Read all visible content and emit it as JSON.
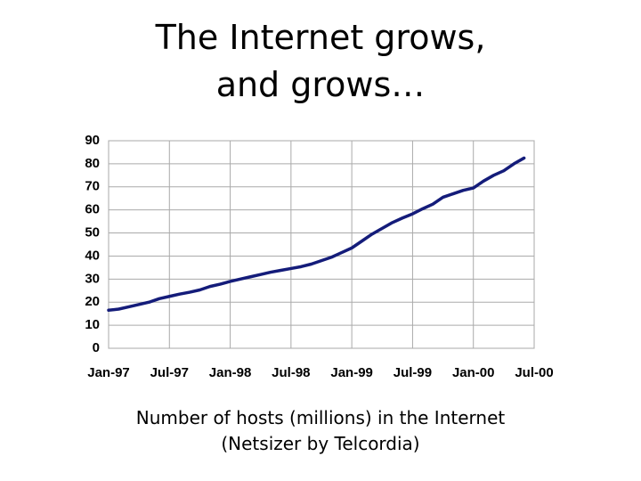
{
  "title": [
    "The Internet grows,",
    "and grows…"
  ],
  "caption": [
    "Number of hosts (millions) in the Internet",
    "(Netsizer by Telcordia)"
  ],
  "chart_data": {
    "type": "line",
    "color": "#141c7a",
    "grid": true,
    "categories": [
      "Jan-97",
      null,
      null,
      null,
      null,
      null,
      "Jul-97",
      null,
      null,
      null,
      null,
      null,
      "Jan-98",
      null,
      null,
      null,
      null,
      null,
      "Jul-98",
      null,
      null,
      null,
      null,
      null,
      "Jan-99",
      null,
      null,
      null,
      null,
      null,
      "Jul-99",
      null,
      null,
      null,
      null,
      null,
      "Jan-00",
      null,
      null,
      null,
      null,
      null,
      "Jul-00"
    ],
    "values": [
      16.5,
      17,
      18,
      19,
      20,
      21.5,
      22.5,
      23.5,
      24.3,
      25.3,
      26.8,
      27.8,
      29,
      30,
      31,
      32,
      33,
      33.8,
      34.6,
      35.4,
      36.5,
      38,
      39.5,
      41.5,
      43.5,
      46.5,
      49.5,
      52,
      54.5,
      56.5,
      58.3,
      60.5,
      62.5,
      65.5,
      67,
      68.5,
      69.5,
      72.5,
      75,
      77,
      80,
      82.5,
      null
    ],
    "ylim": [
      0,
      90
    ],
    "yticks": [
      0,
      10,
      20,
      30,
      40,
      50,
      60,
      70,
      80,
      90
    ]
  }
}
